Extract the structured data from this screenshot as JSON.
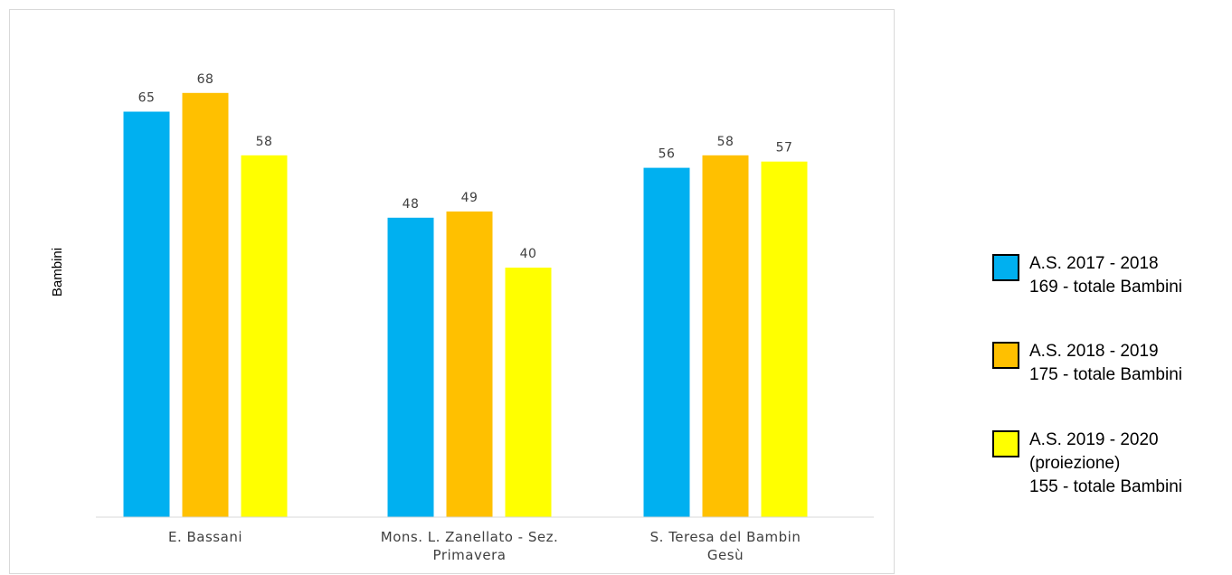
{
  "chart_data": {
    "type": "bar",
    "title": "",
    "xlabel": "",
    "ylabel": "Bambini",
    "ylim": [
      0,
      75
    ],
    "grid": false,
    "legend_position": "right",
    "categories": [
      [
        "E. Bassani"
      ],
      [
        "Mons. L. Zanellato - Sez.",
        "Primavera"
      ],
      [
        "S. Teresa del Bambin",
        "Gesù"
      ]
    ],
    "series": [
      {
        "name": "A.S. 2017 - 2018",
        "total_label": "169 - totale Bambini",
        "color": "#00B0F0",
        "values": [
          65,
          48,
          56
        ]
      },
      {
        "name": "A.S. 2018 - 2019",
        "total_label": "175 - totale Bambini",
        "color": "#FFC000",
        "values": [
          68,
          49,
          58
        ]
      },
      {
        "name": "A.S. 2019 - 2020",
        "name_note": "(proiezione)",
        "total_label": "155 - totale Bambini",
        "color": "#FFFF00",
        "values": [
          58,
          40,
          57
        ]
      }
    ]
  }
}
